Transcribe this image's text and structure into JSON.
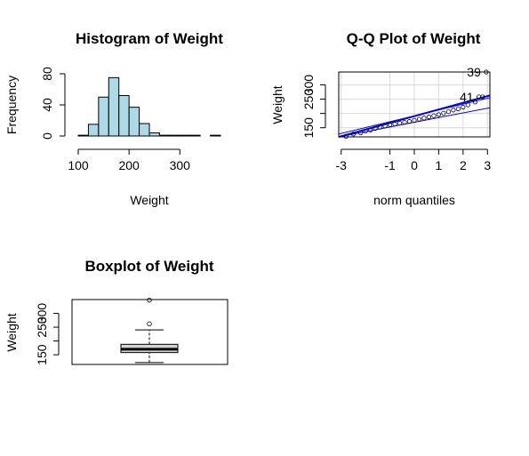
{
  "chart_data": [
    {
      "type": "bar",
      "panel": "histogram",
      "title": "Histogram of Weight",
      "xlabel": "Weight",
      "ylabel": "Frequency",
      "bins": [
        {
          "from": 100,
          "to": 120,
          "count": 1
        },
        {
          "from": 120,
          "to": 140,
          "count": 15
        },
        {
          "from": 140,
          "to": 160,
          "count": 50
        },
        {
          "from": 160,
          "to": 180,
          "count": 75
        },
        {
          "from": 180,
          "to": 200,
          "count": 52
        },
        {
          "from": 200,
          "to": 220,
          "count": 37
        },
        {
          "from": 220,
          "to": 240,
          "count": 16
        },
        {
          "from": 240,
          "to": 260,
          "count": 4
        },
        {
          "from": 260,
          "to": 280,
          "count": 1
        },
        {
          "from": 280,
          "to": 300,
          "count": 1
        },
        {
          "from": 300,
          "to": 320,
          "count": 1
        },
        {
          "from": 320,
          "to": 340,
          "count": 1
        },
        {
          "from": 340,
          "to": 360,
          "count": 0
        },
        {
          "from": 360,
          "to": 380,
          "count": 1
        }
      ],
      "xticks": [
        100,
        200,
        300
      ],
      "yticks": [
        0,
        40,
        80
      ],
      "xlim": [
        100,
        380
      ],
      "ylim": [
        0,
        80
      ],
      "bar_color": "#add8e6"
    },
    {
      "type": "scatter",
      "panel": "qq",
      "title": "Q-Q Plot of Weight",
      "xlabel": "norm quantiles",
      "ylabel": "Weight",
      "xticks": [
        -3,
        -1,
        0,
        1,
        2,
        3
      ],
      "yticks": [
        150,
        200,
        250,
        300
      ],
      "ytick_labels": [
        "150",
        "",
        "250",
        "300"
      ],
      "xlim": [
        -3.1,
        3.1
      ],
      "ylim": [
        118,
        345
      ],
      "grid": true,
      "points_x": [
        -2.8,
        -2.5,
        -2.2,
        -2.0,
        -1.8,
        -1.6,
        -1.4,
        -1.2,
        -1.0,
        -0.8,
        -0.6,
        -0.4,
        -0.2,
        0.0,
        0.2,
        0.4,
        0.6,
        0.8,
        1.0,
        1.2,
        1.4,
        1.6,
        1.8,
        2.0,
        2.2,
        2.5,
        2.8
      ],
      "points_y": [
        120,
        128,
        132,
        138,
        142,
        148,
        152,
        156,
        160,
        163,
        166,
        169,
        172,
        176,
        180,
        184,
        188,
        192,
        196,
        201,
        206,
        212,
        216,
        222,
        230,
        240,
        258
      ],
      "labeled_points": [
        {
          "label": "39",
          "x": 2.95,
          "y": 345
        },
        {
          "label": "41",
          "x": 2.65,
          "y": 258
        }
      ],
      "reference_line": {
        "intercept": 170,
        "slope": 30
      },
      "envelope": {
        "lower_at_min": 105,
        "upper_at_min": 128,
        "lower_at_max": 220,
        "upper_at_max": 255
      },
      "line_color": "#0000ff"
    },
    {
      "type": "box",
      "panel": "boxplot",
      "title": "Boxplot of Weight",
      "ylabel": "Weight",
      "yticks": [
        150,
        200,
        250,
        300
      ],
      "ytick_labels": [
        "150",
        "",
        "250",
        "300"
      ],
      "ylim": [
        115,
        350
      ],
      "min": 122,
      "q1": 158,
      "median": 170,
      "q3": 188,
      "max": 240,
      "outliers": [
        262,
        348
      ],
      "box_color": "#d3d3d3"
    }
  ]
}
